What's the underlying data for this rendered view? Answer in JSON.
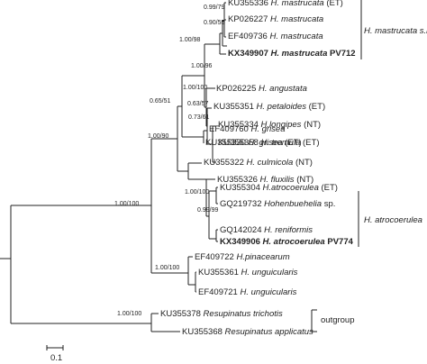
{
  "taxa": [
    {
      "acc": "KU355336",
      "sp": "H. mastrucata",
      "note": "(ET)",
      "bold": false
    },
    {
      "acc": "KP026227",
      "sp": "H. mastrucata",
      "note": "",
      "bold": false
    },
    {
      "acc": "EF409736",
      "sp": "H. mastrucata",
      "note": "",
      "bold": false
    },
    {
      "acc": "KX349907",
      "sp": "H. mastrucata",
      "note": "PV712",
      "bold": true
    },
    {
      "acc": "KP026225",
      "sp": "H. angustata",
      "note": "",
      "bold": false
    },
    {
      "acc": "KU355351",
      "sp": "H. petaloides",
      "note": "(ET)",
      "bold": false
    },
    {
      "acc": "KU355334",
      "sp": "H.longipes",
      "note": "(NT)",
      "bold": false
    },
    {
      "acc": "KU355358",
      "sp": "H. tremula",
      "note": "(ET)",
      "bold": false
    },
    {
      "acc": "EF409760",
      "sp": "H. grisea",
      "note": "",
      "bold": false
    },
    {
      "acc": "KU355330",
      "sp": "H. grisea",
      "note": "(ET)",
      "bold": false
    },
    {
      "acc": "KU355322",
      "sp": "H. culmicola",
      "note": "(NT)",
      "bold": false
    },
    {
      "acc": "KU355326",
      "sp": "H. fluxilis",
      "note": "(NT)",
      "bold": false
    },
    {
      "acc": "KU355304",
      "sp": "H.atrocoerulea",
      "note": "(ET)",
      "bold": false
    },
    {
      "acc": "GQ219732",
      "sp": "Hohenbuehelia",
      "note": "sp.",
      "bold": false
    },
    {
      "acc": "GQ142024",
      "sp": "H. reniformis",
      "note": "",
      "bold": false
    },
    {
      "acc": "KX349906",
      "sp": "H. atrocoerulea",
      "note": "PV774",
      "bold": true
    },
    {
      "acc": "EF409722",
      "sp": "H.pinacearum",
      "note": "",
      "bold": false
    },
    {
      "acc": "KU355361",
      "sp": "H. unguicularis",
      "note": "",
      "bold": false
    },
    {
      "acc": "EF409721",
      "sp": "H. unguicularis",
      "note": "",
      "bold": false
    },
    {
      "acc": "KU355378",
      "sp": "Resupinatus trichotis",
      "note": "",
      "bold": false
    },
    {
      "acc": "KU355368",
      "sp": "Resupinatus applicatus",
      "note": "",
      "bold": false
    }
  ],
  "supports": [
    {
      "id": "s_mast",
      "text": "0.99/79"
    },
    {
      "id": "s_mast2",
      "text": "0.90/55"
    },
    {
      "id": "s_mastall",
      "text": "1.00/98"
    },
    {
      "id": "s_msl",
      "text": "1.00/96"
    },
    {
      "id": "s_petal",
      "text": "1.00/100"
    },
    {
      "id": "s_plt",
      "text": "0.63/57"
    },
    {
      "id": "s_lt",
      "text": "0.73/61"
    },
    {
      "id": "s_top",
      "text": "0.65/51"
    },
    {
      "id": "s_upper",
      "text": "1.00/90"
    },
    {
      "id": "s_atro",
      "text": "1.00/100"
    },
    {
      "id": "s_atro2",
      "text": "0.99/99"
    },
    {
      "id": "s_ingroup",
      "text": "1.00/100"
    },
    {
      "id": "s_ungu",
      "text": "1.00/100"
    },
    {
      "id": "s_resu",
      "text": "1.00/100"
    }
  ],
  "groups": {
    "mastrucata": "H. mastrucata s.l.",
    "atrocoerulea": "H. atrocoerulea",
    "outgroup": "outgroup"
  },
  "scale": {
    "label": "0.1"
  }
}
